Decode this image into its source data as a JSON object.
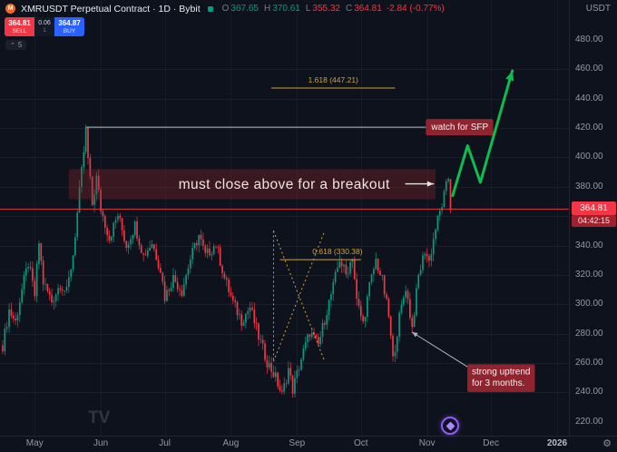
{
  "colors": {
    "up": "#089981",
    "down": "#f23645",
    "buy": "#2962ff",
    "annotation_red": "#8f242e",
    "fib_gold": "#cfa43c",
    "arrow_green": "#0dbd4f",
    "sfp_line": "#b9bec8",
    "axis_text": "#9298a7"
  },
  "toolbar": {
    "symbol_title": "XMRUSDT Perpetual Contract · 1D · Bybit",
    "ohlc": {
      "o_label": "O",
      "o_value": "367.65",
      "h_label": "H",
      "h_value": "370.61",
      "l_label": "L",
      "l_value": "355.32",
      "c_label": "C",
      "c_value": "364.81",
      "change": "-2.84 (-0.77%)"
    },
    "unit": "USDT"
  },
  "trade_widget": {
    "sell_price": "364.81",
    "sell_label": "SELL",
    "spread": "0.06",
    "qty": "1",
    "buy_price": "364.87",
    "buy_label": "BUY"
  },
  "drawings_chip": {
    "chevron": "⌃",
    "count": "5"
  },
  "price_axis": {
    "ticks": [
      480,
      460,
      440,
      420,
      400,
      380,
      360,
      340,
      320,
      300,
      280,
      260,
      240,
      220
    ],
    "last_price": "364.81",
    "countdown": "04:42:15"
  },
  "watermark": "TV",
  "chart_data": {
    "type": "candlestick",
    "symbol": "XMRUSDT",
    "exchange": "Bybit",
    "interval": "1D",
    "current_bar": {
      "open": 367.65,
      "high": 370.61,
      "low": 355.32,
      "close": 364.81,
      "change": -2.84,
      "change_pct": -0.77
    },
    "ylim": [
      220,
      480
    ],
    "y_ticks": [
      240,
      260,
      280,
      300,
      320,
      340,
      360,
      380,
      400,
      420,
      440,
      460
    ],
    "x_months": [
      {
        "label": "May",
        "day": 15
      },
      {
        "label": "Jun",
        "day": 46
      },
      {
        "label": "Jul",
        "day": 76
      },
      {
        "label": "Aug",
        "day": 107
      },
      {
        "label": "Sep",
        "day": 138
      },
      {
        "label": "Oct",
        "day": 168
      },
      {
        "label": "Nov",
        "day": 199
      },
      {
        "label": "Dec",
        "day": 229
      },
      {
        "label": "2026",
        "day": 260
      }
    ],
    "days": 211,
    "last_close": 364.81,
    "noise": 8,
    "wick": 5,
    "up_color": "#089981",
    "down_color": "#f23645",
    "price_path": [
      [
        0,
        272
      ],
      [
        3,
        296
      ],
      [
        6,
        288
      ],
      [
        9,
        310
      ],
      [
        12,
        328
      ],
      [
        15,
        306
      ],
      [
        17,
        342
      ],
      [
        19,
        315
      ],
      [
        23,
        302
      ],
      [
        27,
        314
      ],
      [
        30,
        308
      ],
      [
        33,
        334
      ],
      [
        35,
        362
      ],
      [
        37,
        390
      ],
      [
        39,
        418
      ],
      [
        40,
        399
      ],
      [
        42,
        368
      ],
      [
        44,
        386
      ],
      [
        46,
        365
      ],
      [
        50,
        345
      ],
      [
        54,
        361
      ],
      [
        58,
        340
      ],
      [
        62,
        354
      ],
      [
        66,
        333
      ],
      [
        70,
        342
      ],
      [
        74,
        324
      ],
      [
        76,
        305
      ],
      [
        80,
        318
      ],
      [
        84,
        309
      ],
      [
        88,
        331
      ],
      [
        92,
        347
      ],
      [
        95,
        333
      ],
      [
        100,
        341
      ],
      [
        104,
        318
      ],
      [
        108,
        301
      ],
      [
        112,
        289
      ],
      [
        116,
        298
      ],
      [
        120,
        278
      ],
      [
        124,
        261
      ],
      [
        128,
        250
      ],
      [
        131,
        238
      ],
      [
        134,
        256
      ],
      [
        136,
        242
      ],
      [
        140,
        263
      ],
      [
        144,
        281
      ],
      [
        148,
        272
      ],
      [
        152,
        296
      ],
      [
        155,
        312
      ],
      [
        158,
        331
      ],
      [
        161,
        320
      ],
      [
        164,
        333
      ],
      [
        166,
        302
      ],
      [
        169,
        287
      ],
      [
        172,
        312
      ],
      [
        175,
        330
      ],
      [
        178,
        316
      ],
      [
        181,
        292
      ],
      [
        183,
        262
      ],
      [
        186,
        291
      ],
      [
        189,
        312
      ],
      [
        192,
        284
      ],
      [
        195,
        319
      ],
      [
        198,
        337
      ],
      [
        200,
        329
      ],
      [
        203,
        352
      ],
      [
        206,
        368
      ],
      [
        208,
        380
      ],
      [
        209,
        386
      ],
      [
        210,
        365
      ]
    ],
    "key_levels": {
      "fib_1618": 447.21,
      "fib_0618": 330.38,
      "sfp_high": 420.6,
      "last_price": 364.81
    },
    "annotations": [
      {
        "name": "sfp-level-line",
        "type": "hline",
        "price": 420.6,
        "d1": 39,
        "d2": 199.5,
        "color": "#b9bec8",
        "width": 1
      },
      {
        "name": "watch-for-sfp-label",
        "type": "label",
        "text": "watch for SFP",
        "d": 201,
        "price": 420.6,
        "bg": "#8f242e",
        "fg": "#f2f2f2",
        "size": 10,
        "align": "left",
        "vcenter": true
      },
      {
        "name": "breakout-zone-box",
        "type": "box",
        "d1": 31,
        "d2": 203,
        "p1": 392,
        "p2": 371.5,
        "bg": "rgba(148,38,48,0.32)"
      },
      {
        "name": "breakout-note-text",
        "type": "label",
        "text": "must close above for a breakout",
        "d": 132,
        "price": 381.8,
        "bg": "none",
        "fg": "#efe4d8",
        "size": 15.5,
        "align": "center",
        "vcenter": true,
        "ls": 0.4
      },
      {
        "name": "breakout-arrow",
        "type": "polyarrow",
        "points": [
          [
            189,
            382
          ],
          [
            202,
            382
          ]
        ],
        "color": "#e9e6e0",
        "width": 1.4
      },
      {
        "name": "fib-1618-line",
        "type": "hline",
        "price": 447.21,
        "d1": 126,
        "d2": 184,
        "color": "#cfa43c",
        "width": 1
      },
      {
        "name": "fib-1618-label",
        "type": "label",
        "text": "1.618 (447.21)",
        "d": 155,
        "price": 451,
        "bg": "none",
        "fg": "#cfa43c",
        "size": 8.5,
        "align": "center"
      },
      {
        "name": "fib-0618-line",
        "type": "hline",
        "price": 330.38,
        "d1": 130,
        "d2": 168,
        "color": "#cfa43c",
        "width": 1
      },
      {
        "name": "fib-0618-label",
        "type": "label",
        "text": "0.618 (330.38)",
        "d": 157,
        "price": 334.2,
        "bg": "none",
        "fg": "#cfa43c",
        "size": 8.5,
        "align": "center"
      },
      {
        "name": "fib-guide-vertical",
        "type": "segment",
        "d1": 127,
        "p1": 350,
        "d2": 127,
        "p2": 261,
        "color": "#cfa43c",
        "width": 1,
        "dash": "2 3"
      },
      {
        "name": "fib-guide-diagonal-down",
        "type": "segment",
        "d1": 127,
        "p1": 350,
        "d2": 151,
        "p2": 261,
        "color": "#cfa43c",
        "width": 1,
        "dash": "2 3"
      },
      {
        "name": "fib-guide-diagonal-up",
        "type": "segment",
        "d1": 127,
        "p1": 261,
        "d2": 151,
        "p2": 350,
        "color": "#cfa43c",
        "width": 1,
        "dash": "2 3"
      },
      {
        "name": "last-price-line",
        "type": "hline",
        "price": 364.81,
        "d1": -2,
        "d2": 266,
        "color": "#f23645",
        "width": 1,
        "opacity": 0.9
      },
      {
        "name": "projection-arrow",
        "type": "polyarrow",
        "points": [
          [
            211,
            374
          ],
          [
            218,
            408
          ],
          [
            224,
            383
          ],
          [
            239,
            459
          ]
        ],
        "color": "#0dbd4f",
        "width": 3
      },
      {
        "name": "uptrend-pointer-arrow",
        "type": "polyarrow",
        "points": [
          [
            219,
            256.5
          ],
          [
            192,
            281
          ]
        ],
        "color": "#aeb2bc",
        "width": 1
      },
      {
        "name": "uptrend-label",
        "type": "label",
        "text": "strong uptrend\nfor 3 months.",
        "d": 220,
        "price": 256,
        "bg": "#8f242e",
        "fg": "#f2f2f2",
        "size": 10,
        "align": "left"
      }
    ]
  }
}
